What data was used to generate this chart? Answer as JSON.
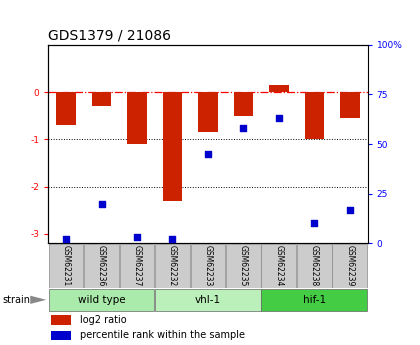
{
  "title": "GDS1379 / 21086",
  "samples": [
    "GSM62231",
    "GSM62236",
    "GSM62237",
    "GSM62232",
    "GSM62233",
    "GSM62235",
    "GSM62234",
    "GSM62238",
    "GSM62239"
  ],
  "log2_ratio": [
    -0.7,
    -0.3,
    -1.1,
    -2.3,
    -0.85,
    -0.5,
    0.15,
    -1.0,
    -0.55
  ],
  "percentile_rank": [
    2,
    20,
    3,
    2,
    45,
    58,
    63,
    10,
    17
  ],
  "groups": [
    {
      "name": "wild type",
      "start": 0,
      "end": 3,
      "color": "#aaeaaa"
    },
    {
      "name": "vhl-1",
      "start": 3,
      "end": 6,
      "color": "#bbf0bb"
    },
    {
      "name": "hif-1",
      "start": 6,
      "end": 9,
      "color": "#44cc44"
    }
  ],
  "ylim_left": [
    -3.2,
    1.0
  ],
  "ylim_right": [
    0,
    100
  ],
  "bar_color": "#cc2200",
  "dot_color": "#0000cc",
  "bar_width": 0.55,
  "grid_lines": [
    -1,
    -2
  ],
  "background_color": "#ffffff",
  "title_fontsize": 10,
  "tick_fontsize": 6.5,
  "sample_fontsize": 5.5,
  "group_fontsize": 7.5
}
